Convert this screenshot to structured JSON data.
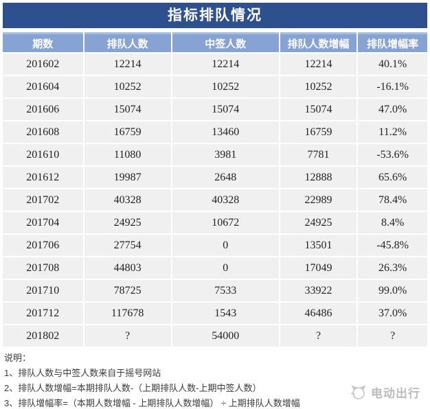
{
  "title": "指标排队情况",
  "chart_data": {
    "type": "table",
    "title": "指标排队情况",
    "columns": [
      "期数",
      "排队人数",
      "中签人数",
      "排队人数增幅",
      "排队增幅率"
    ],
    "rows": [
      [
        "201602",
        "12214",
        "12214",
        "12214",
        "40.1%"
      ],
      [
        "201604",
        "10252",
        "10252",
        "10252",
        "-16.1%"
      ],
      [
        "201606",
        "15074",
        "15074",
        "15074",
        "47.0%"
      ],
      [
        "201608",
        "16759",
        "13460",
        "16759",
        "11.2%"
      ],
      [
        "201610",
        "11080",
        "3981",
        "7781",
        "-53.6%"
      ],
      [
        "201612",
        "19987",
        "2648",
        "12888",
        "65.6%"
      ],
      [
        "201702",
        "40328",
        "40328",
        "22989",
        "78.4%"
      ],
      [
        "201704",
        "24925",
        "10672",
        "24925",
        "8.4%"
      ],
      [
        "201706",
        "27754",
        "0",
        "13501",
        "-45.8%"
      ],
      [
        "201708",
        "44803",
        "0",
        "17049",
        "26.3%"
      ],
      [
        "201710",
        "78725",
        "7533",
        "33922",
        "99.0%"
      ],
      [
        "201712",
        "117678",
        "1543",
        "46486",
        "37.0%"
      ],
      [
        "201802",
        "?",
        "54000",
        "?",
        "?"
      ]
    ]
  },
  "notes": {
    "heading": "说明：",
    "items": [
      "1、排队人数与中签人数来自于摇号网站",
      "2、排队人数增幅=本期排队人数-（上期排队人数-上期中签人数）",
      "3、排队增幅率=（本期人数增幅 - 上期排队人数增幅） ÷ 上期排队人数增幅"
    ]
  },
  "watermark": {
    "label": "电动出行"
  },
  "colors": {
    "title_bg": "#2f508f",
    "header_bg": "#87a3d3",
    "header_top_edge": "#a9bde4",
    "row_bg": "#f0f0f0",
    "gridline": "#ffffff"
  }
}
